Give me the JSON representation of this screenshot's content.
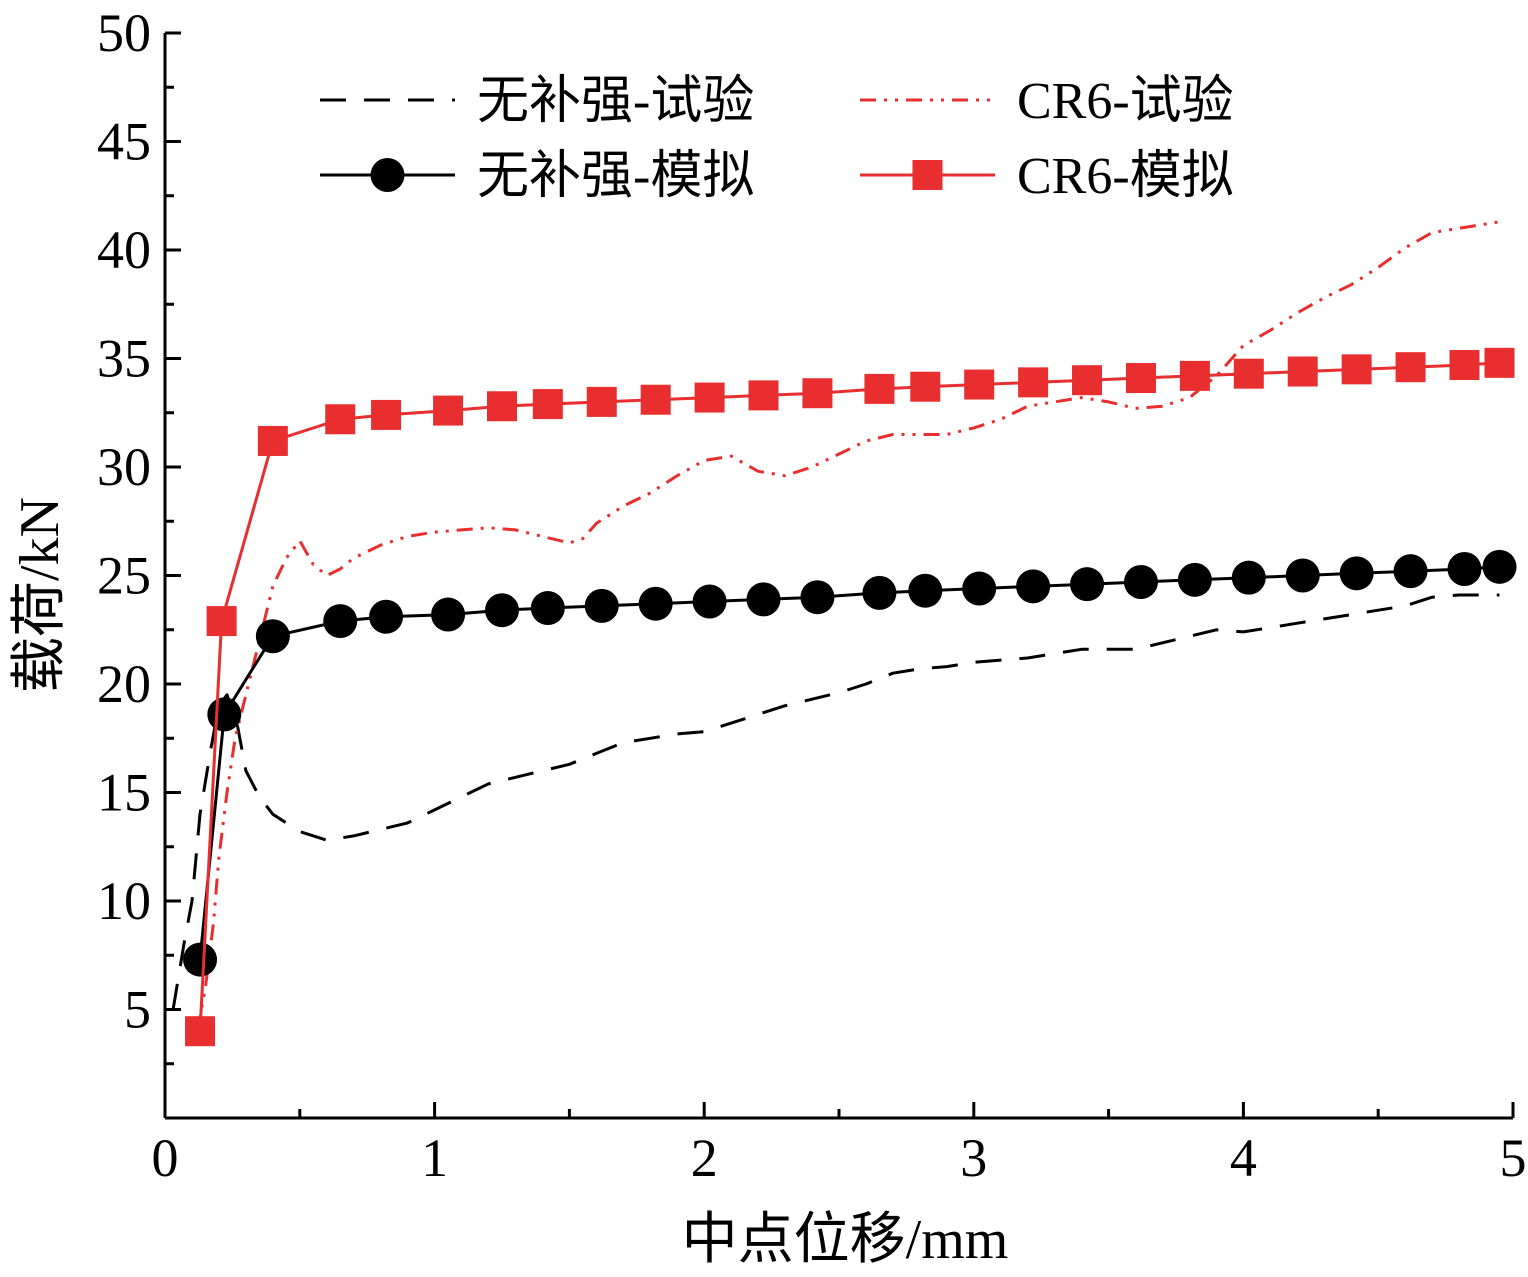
{
  "chart_data": {
    "type": "line",
    "title": "",
    "xlabel": "中点位移/mm",
    "ylabel": "载荷/kN",
    "xlim": [
      0,
      5
    ],
    "ylim": [
      0,
      50
    ],
    "xticks": [
      0,
      1,
      2,
      3,
      4,
      5
    ],
    "yticks": [
      5,
      10,
      15,
      20,
      25,
      30,
      35,
      40,
      45,
      50
    ],
    "grid": false,
    "legend_position": "top-left",
    "series": [
      {
        "name": "无补强-试验",
        "color": "#000000",
        "style": "dashed",
        "marker": "none",
        "x": [
          0.03,
          0.07,
          0.1,
          0.13,
          0.17,
          0.2,
          0.23,
          0.27,
          0.3,
          0.35,
          0.4,
          0.5,
          0.6,
          0.7,
          0.8,
          0.9,
          1.0,
          1.1,
          1.2,
          1.3,
          1.4,
          1.5,
          1.6,
          1.7,
          1.8,
          1.9,
          2.0,
          2.1,
          2.2,
          2.3,
          2.4,
          2.5,
          2.6,
          2.7,
          2.8,
          2.9,
          3.0,
          3.1,
          3.2,
          3.3,
          3.4,
          3.5,
          3.6,
          3.7,
          3.8,
          3.9,
          4.0,
          4.1,
          4.2,
          4.3,
          4.4,
          4.5,
          4.6,
          4.7,
          4.8,
          4.95
        ],
        "y": [
          5.0,
          8.0,
          10.0,
          14.0,
          17.0,
          19.0,
          19.5,
          18.0,
          16.0,
          14.8,
          14.0,
          13.2,
          12.8,
          13.0,
          13.3,
          13.6,
          14.2,
          14.8,
          15.4,
          15.7,
          16.0,
          16.3,
          16.8,
          17.3,
          17.5,
          17.7,
          17.8,
          18.2,
          18.6,
          19.0,
          19.3,
          19.6,
          20.0,
          20.5,
          20.7,
          20.8,
          21.0,
          21.1,
          21.2,
          21.4,
          21.6,
          21.6,
          21.6,
          21.9,
          22.2,
          22.5,
          22.4,
          22.6,
          22.8,
          23.0,
          23.2,
          23.4,
          23.6,
          24.0,
          24.1,
          24.1
        ]
      },
      {
        "name": "CR6-试验",
        "color": "#e82e2e",
        "style": "dashdotdot",
        "marker": "none",
        "x": [
          0.12,
          0.15,
          0.18,
          0.2,
          0.23,
          0.26,
          0.3,
          0.35,
          0.4,
          0.45,
          0.5,
          0.55,
          0.6,
          0.65,
          0.7,
          0.8,
          0.9,
          1.0,
          1.1,
          1.2,
          1.3,
          1.4,
          1.5,
          1.55,
          1.6,
          1.7,
          1.8,
          1.9,
          2.0,
          2.1,
          2.2,
          2.3,
          2.4,
          2.5,
          2.6,
          2.7,
          2.8,
          2.9,
          3.0,
          3.1,
          3.2,
          3.3,
          3.4,
          3.5,
          3.6,
          3.7,
          3.8,
          3.9,
          4.0,
          4.1,
          4.2,
          4.3,
          4.4,
          4.5,
          4.6,
          4.7,
          4.8,
          4.95
        ],
        "y": [
          4.0,
          6.0,
          9.0,
          12.0,
          15.0,
          17.5,
          19.5,
          22.0,
          24.5,
          25.8,
          26.6,
          25.5,
          25.0,
          25.3,
          25.8,
          26.4,
          26.8,
          27.0,
          27.1,
          27.2,
          27.1,
          26.8,
          26.5,
          26.7,
          27.4,
          28.2,
          28.8,
          29.6,
          30.3,
          30.5,
          29.8,
          29.6,
          30.0,
          30.6,
          31.2,
          31.5,
          31.5,
          31.5,
          31.8,
          32.2,
          32.8,
          33.0,
          33.2,
          33.0,
          32.7,
          32.8,
          33.2,
          34.2,
          35.6,
          36.3,
          37.1,
          37.8,
          38.4,
          39.2,
          40.1,
          40.8,
          41.0,
          41.3
        ]
      },
      {
        "name": "无补强-模拟",
        "color": "#000000",
        "style": "solid",
        "marker": "circle",
        "x": [
          0.13,
          0.22,
          0.4,
          0.65,
          0.82,
          1.05,
          1.25,
          1.42,
          1.62,
          1.82,
          2.02,
          2.22,
          2.42,
          2.65,
          2.82,
          3.02,
          3.22,
          3.42,
          3.62,
          3.82,
          4.02,
          4.22,
          4.42,
          4.62,
          4.82,
          4.95
        ],
        "y": [
          7.3,
          18.6,
          22.2,
          22.9,
          23.1,
          23.2,
          23.4,
          23.5,
          23.6,
          23.7,
          23.8,
          23.9,
          24.0,
          24.2,
          24.3,
          24.4,
          24.5,
          24.6,
          24.7,
          24.8,
          24.9,
          25.0,
          25.1,
          25.2,
          25.3,
          25.4
        ]
      },
      {
        "name": "CR6-模拟",
        "color": "#e82e2e",
        "style": "solid",
        "marker": "square",
        "x": [
          0.13,
          0.21,
          0.4,
          0.65,
          0.82,
          1.05,
          1.25,
          1.42,
          1.62,
          1.82,
          2.02,
          2.22,
          2.42,
          2.65,
          2.82,
          3.02,
          3.22,
          3.42,
          3.62,
          3.82,
          4.02,
          4.22,
          4.42,
          4.62,
          4.82,
          4.95
        ],
        "y": [
          4.0,
          22.9,
          31.2,
          32.2,
          32.4,
          32.6,
          32.8,
          32.9,
          33.0,
          33.1,
          33.2,
          33.3,
          33.4,
          33.6,
          33.7,
          33.8,
          33.9,
          34.0,
          34.1,
          34.2,
          34.3,
          34.4,
          34.5,
          34.6,
          34.7,
          34.8
        ]
      }
    ]
  }
}
